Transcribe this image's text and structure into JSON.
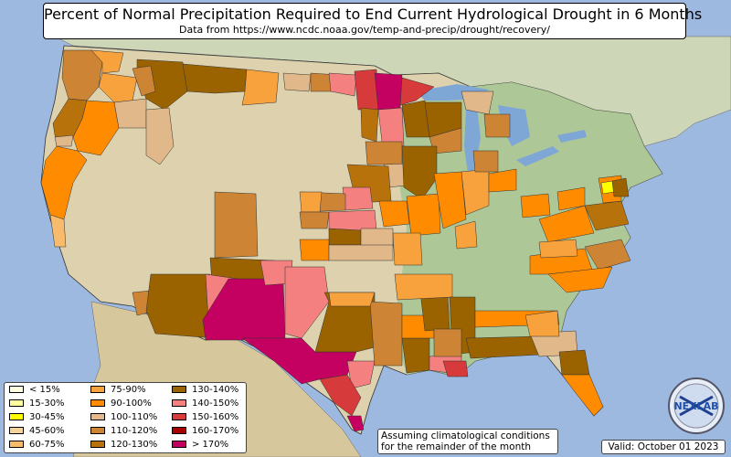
{
  "title": "Percent of Normal Precipitation Required to End Current Hydrological Drought in 6 Months",
  "subtitle": "Data from https://www.ncdc.noaa.gov/temp-and-precip/drought/recovery/",
  "note_line1": "Assuming climatological conditions",
  "note_line2": "for the remainder of the month",
  "valid": "Valid: October 01 2023",
  "logo_text": "NEXLAB",
  "logo_icon": "nexlab-globe-logo",
  "legend": [
    {
      "label": "< 15%",
      "color": "#ffffe0"
    },
    {
      "label": "15-30%",
      "color": "#ffffa0"
    },
    {
      "label": "30-45%",
      "color": "#ffff00"
    },
    {
      "label": "45-60%",
      "color": "#f5d49b"
    },
    {
      "label": "60-75%",
      "color": "#f7bb6b"
    },
    {
      "label": "75-90%",
      "color": "#f7a23c"
    },
    {
      "label": "90-100%",
      "color": "#ff8c00"
    },
    {
      "label": "100-110%",
      "color": "#e1b88a"
    },
    {
      "label": "110-120%",
      "color": "#cd8535"
    },
    {
      "label": "120-130%",
      "color": "#b8720c"
    },
    {
      "label": "130-140%",
      "color": "#9a6300"
    },
    {
      "label": "140-150%",
      "color": "#f58080"
    },
    {
      "label": "150-160%",
      "color": "#d63a3a"
    },
    {
      "label": "160-170%",
      "color": "#a80000"
    },
    {
      "label": "> 170%",
      "color": "#c40060"
    }
  ],
  "colors": {
    "ocean": "#9db9df",
    "land_dry": "#ddd2ad",
    "land_green": "#a9c595",
    "canada": "#cdd6b7",
    "mexico": "#d7c79c",
    "lake": "#7fa7d6"
  }
}
